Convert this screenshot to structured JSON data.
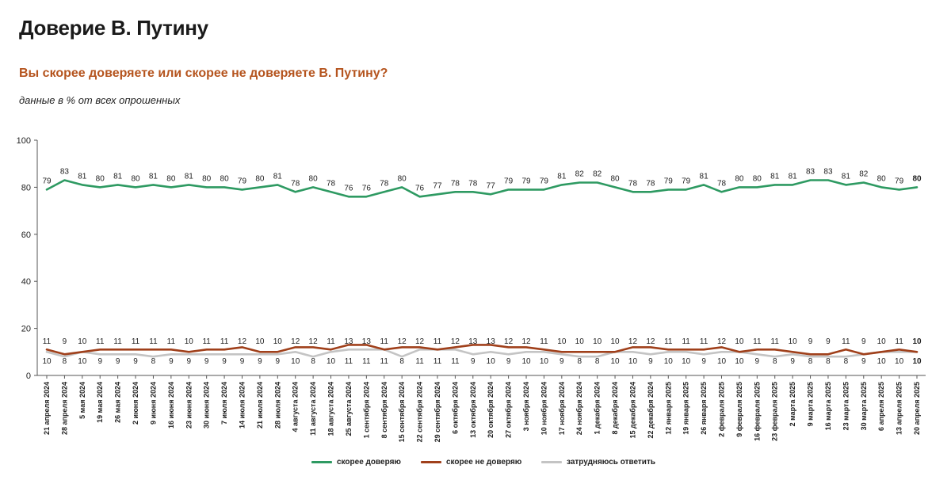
{
  "header": {
    "title": "Доверие В. Путину",
    "subtitle": "Вы скорее доверяете или скорее не доверяете В. Путину?",
    "note": "данные в % от всех опрошенных"
  },
  "chart_data": {
    "type": "line",
    "title": "Доверие В. Путину",
    "subtitle": "Вы скорее доверяете или скорее не доверяете В. Путину?",
    "ylim": [
      0,
      100
    ],
    "yticks": [
      0,
      20,
      40,
      60,
      80,
      100
    ],
    "grid": false,
    "legend_position": "bottom",
    "categories": [
      "21 апреля 2024",
      "28 апреля 2024",
      "5 мая 2024",
      "19 мая 2024",
      "26 мая 2024",
      "2 июня 2024",
      "9 июня 2024",
      "16 июня 2024",
      "23 июня 2024",
      "30 июня 2024",
      "7 июля 2024",
      "14 июля 2024",
      "21 июля 2024",
      "28 июля 2024",
      "4 августа 2024",
      "11 августа 2024",
      "18 августа 2024",
      "25 августа 2024",
      "1 сентября 2024",
      "8 сентября 2024",
      "15 сентября 2024",
      "22 сентября 2024",
      "29 сентября 2024",
      "6 октября 2024",
      "13 октября 2024",
      "20 октября 2024",
      "27 октября 2024",
      "3 ноября 2024",
      "10 ноября 2024",
      "17 ноября 2024",
      "24 ноября 2024",
      "1 декабря 2024",
      "8 декабря 2024",
      "15 декабря 2024",
      "22 декабря 2024",
      "12 января 2025",
      "19 января 2025",
      "26 января 2025",
      "2 февраля 2025",
      "9 февраля 2025",
      "16 февраля 2025",
      "23 февраля 2025",
      "2 марта 2025",
      "9 марта 2025",
      "16 марта 2025",
      "23 марта 2025",
      "30 марта 2025",
      "6 апреля 2025",
      "13 апреля 2025",
      "20 апреля 2025"
    ],
    "series": [
      {
        "name": "скорее доверяю",
        "color": "#2e9a62",
        "values": [
          79,
          83,
          81,
          80,
          81,
          80,
          81,
          80,
          81,
          80,
          80,
          79,
          80,
          81,
          78,
          80,
          78,
          76,
          76,
          78,
          80,
          76,
          77,
          78,
          78,
          77,
          79,
          79,
          79,
          81,
          82,
          82,
          80,
          78,
          78,
          79,
          79,
          81,
          78,
          80,
          80,
          81,
          81,
          83,
          83,
          81,
          82,
          80,
          79,
          80
        ],
        "label_pos": "above"
      },
      {
        "name": "скорее не доверяю",
        "color": "#a0401b",
        "values": [
          11,
          9,
          10,
          11,
          11,
          11,
          11,
          11,
          10,
          11,
          11,
          12,
          10,
          10,
          12,
          12,
          11,
          13,
          13,
          11,
          12,
          12,
          11,
          12,
          13,
          13,
          12,
          12,
          11,
          10,
          10,
          10,
          10,
          12,
          12,
          11,
          11,
          11,
          12,
          10,
          11,
          11,
          10,
          9,
          9,
          11,
          9,
          10,
          11,
          10
        ],
        "label_pos": "above"
      },
      {
        "name": "затрудняюсь ответить",
        "color": "#c4c4c4",
        "values": [
          10,
          8,
          10,
          9,
          9,
          9,
          8,
          9,
          9,
          9,
          9,
          9,
          9,
          9,
          10,
          8,
          10,
          11,
          11,
          11,
          8,
          11,
          11,
          11,
          9,
          10,
          9,
          10,
          10,
          9,
          8,
          8,
          10,
          10,
          9,
          10,
          10,
          9,
          10,
          10,
          9,
          8,
          9,
          8,
          8,
          8,
          9,
          10,
          10,
          10
        ],
        "label_pos": "below"
      }
    ]
  }
}
